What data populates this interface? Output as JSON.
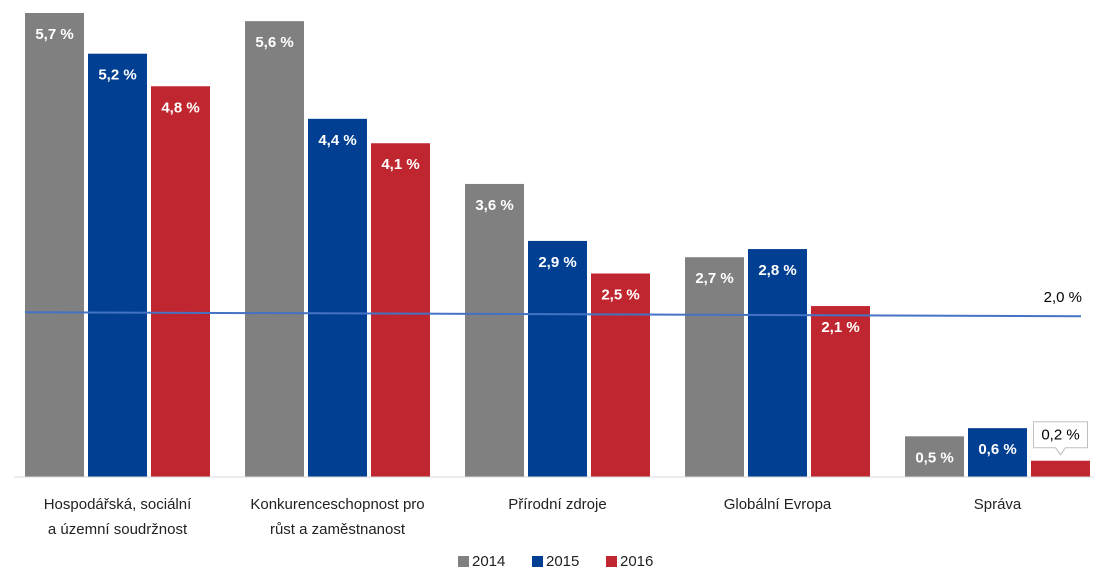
{
  "chart_data": {
    "type": "bar",
    "categories": [
      [
        "Hospodářská, sociální",
        "a územní soudržnost"
      ],
      [
        "Konkurenceschopnost pro",
        "růst a zaměstnanost"
      ],
      [
        "Přírodní zdroje"
      ],
      [
        "Globální Evropa"
      ],
      [
        "Správa"
      ]
    ],
    "series": [
      {
        "name": "2014",
        "color": "#808080",
        "values": [
          5.7,
          5.6,
          3.6,
          2.7,
          0.5
        ]
      },
      {
        "name": "2015",
        "color": "#003f91",
        "values": [
          5.2,
          4.4,
          2.9,
          2.8,
          0.6
        ]
      },
      {
        "name": "2016",
        "color": "#c0262f",
        "values": [
          4.8,
          4.1,
          2.5,
          2.1,
          0.2
        ]
      }
    ],
    "value_labels": [
      [
        "5,7 %",
        "5,6 %",
        "3,6 %",
        "2,7 %",
        "0,5 %"
      ],
      [
        "5,2 %",
        "4,4 %",
        "2,9 %",
        "2,8 %",
        "0,6 %"
      ],
      [
        "4,8 %",
        "4,1 %",
        "2,5 %",
        "2,1 %",
        "0,2 %"
      ]
    ],
    "reference_line": {
      "value": 2.0,
      "label": "2,0 %",
      "color": "#4472c4"
    },
    "ylim": [
      0,
      5.7
    ],
    "grid": false,
    "legend_position": "bottom-center"
  }
}
